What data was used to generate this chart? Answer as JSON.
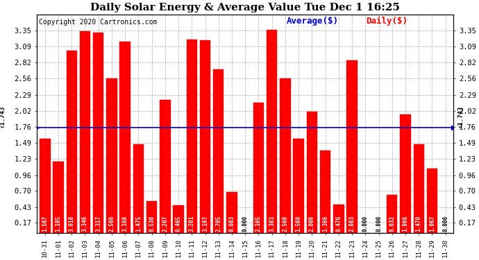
{
  "title": "Daily Solar Energy & Average Value Tue Dec 1 16:25",
  "copyright": "Copyright 2020 Cartronics.com",
  "average_label": "Average($)",
  "daily_label": "Daily($)",
  "average_value": 1.743,
  "categories": [
    "10-31",
    "11-01",
    "11-02",
    "11-03",
    "11-04",
    "11-05",
    "11-06",
    "11-07",
    "11-08",
    "11-09",
    "11-10",
    "11-11",
    "11-12",
    "11-13",
    "11-14",
    "11-15",
    "11-16",
    "11-17",
    "11-18",
    "11-19",
    "11-20",
    "11-21",
    "11-22",
    "11-23",
    "11-24",
    "11-25",
    "11-26",
    "11-27",
    "11-28",
    "11-29",
    "11-30"
  ],
  "values": [
    1.567,
    1.185,
    3.018,
    3.346,
    3.317,
    2.56,
    3.168,
    1.475,
    0.53,
    2.207,
    0.465,
    3.201,
    3.197,
    2.705,
    0.683,
    0.0,
    2.165,
    3.363,
    2.56,
    1.56,
    2.009,
    1.366,
    0.476,
    2.863,
    0.0,
    0.0,
    0.632,
    1.966,
    1.47,
    1.067,
    0.0
  ],
  "bar_color": "#ff0000",
  "avg_line_color": "#0000cc",
  "background_color": "#ffffff",
  "grid_color": "#aaaaaa",
  "ylim_min": 0.0,
  "ylim_max": 3.62,
  "yticks": [
    0.17,
    0.43,
    0.7,
    0.96,
    1.23,
    1.49,
    1.76,
    2.02,
    2.29,
    2.56,
    2.82,
    3.09,
    3.35
  ],
  "title_fontsize": 11,
  "copyright_fontsize": 7,
  "legend_fontsize": 9,
  "bar_label_fontsize": 5.5,
  "xtick_fontsize": 6.5,
  "ytick_fontsize": 7.5,
  "avg_label_fontsize": 6.5
}
